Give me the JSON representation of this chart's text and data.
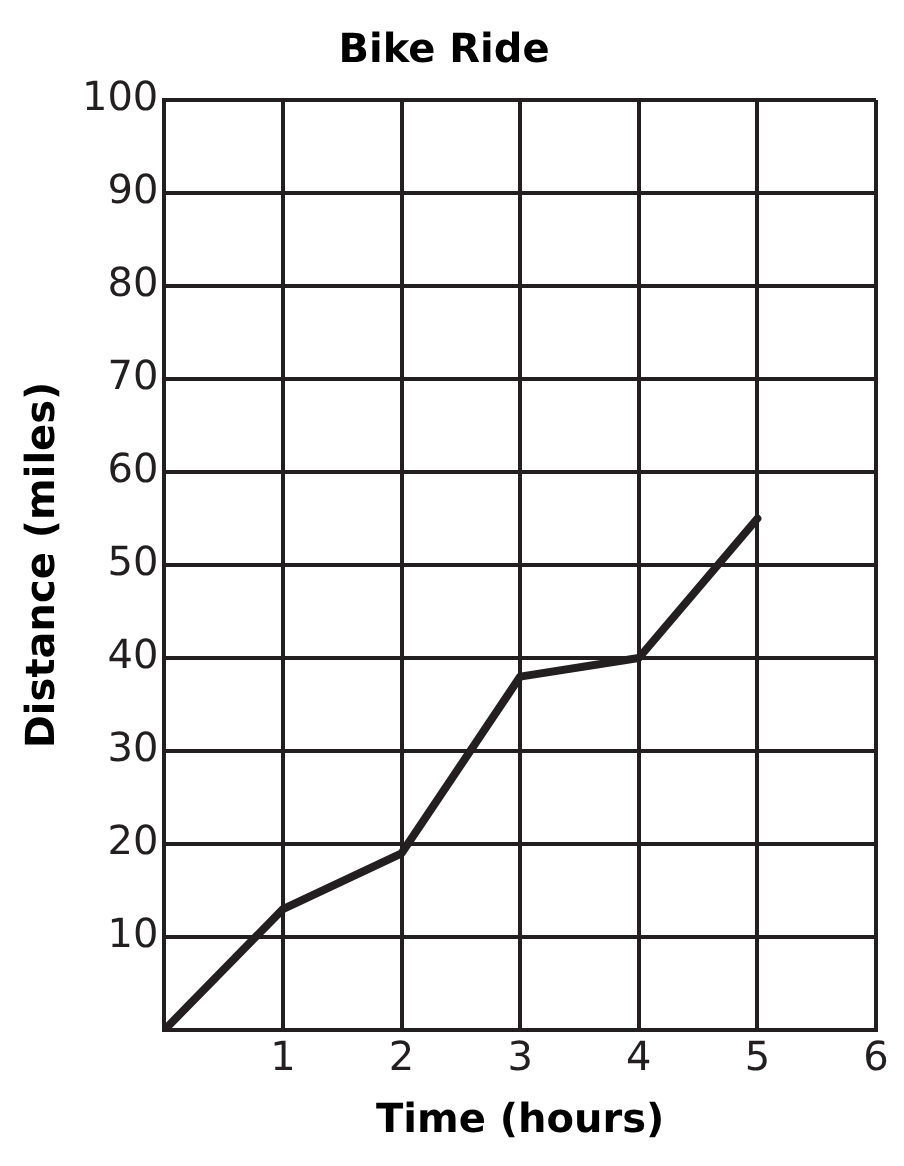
{
  "chart_data": {
    "type": "line",
    "title": "Bike Ride",
    "xlabel": "Time (hours)",
    "ylabel": "Distance (miles)",
    "x": [
      0,
      1,
      2,
      3,
      4,
      5
    ],
    "series": [
      {
        "color": "#231f20",
        "values": [
          0,
          13,
          19,
          38,
          40,
          55
        ]
      }
    ],
    "xlim": [
      0,
      6
    ],
    "xticks": [
      {
        "value": 0,
        "label": null
      },
      1,
      2,
      3,
      4,
      5,
      6
    ],
    "ylim": [
      0,
      100
    ],
    "yticks": [
      {
        "value": 0,
        "label": null
      },
      10,
      20,
      30,
      40,
      50,
      60,
      70,
      80,
      90,
      100
    ],
    "grid": true,
    "legend": false,
    "marker": "none",
    "line_style": "solid"
  }
}
